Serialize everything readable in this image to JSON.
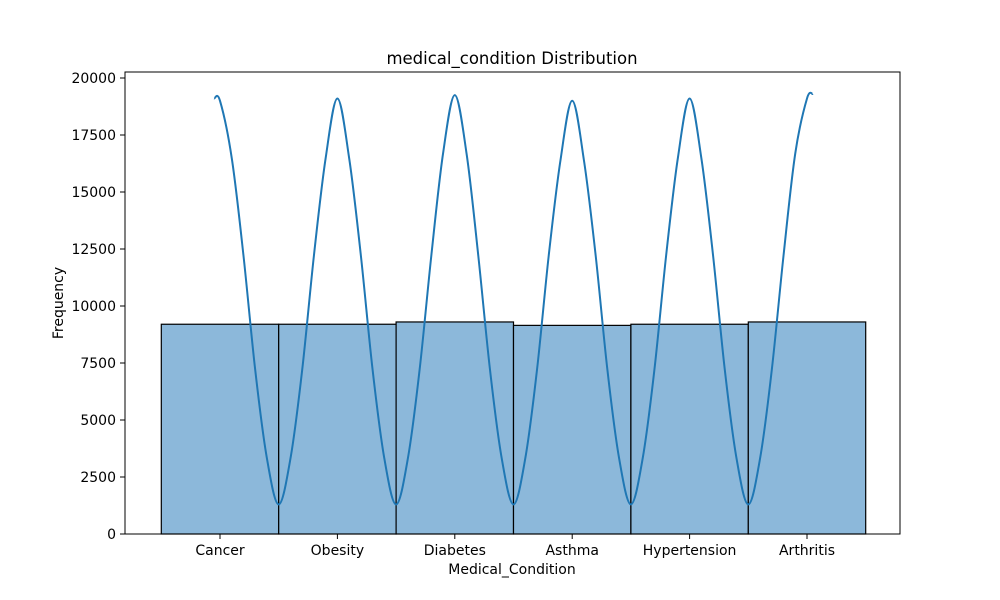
{
  "chart_data": {
    "type": "bar",
    "title": "medical_condition Distribution",
    "xlabel": "Medical_Condition",
    "ylabel": "Frequency",
    "categories": [
      "Cancer",
      "Obesity",
      "Diabetes",
      "Asthma",
      "Hypertension",
      "Arthritis"
    ],
    "values": [
      9200,
      9200,
      9300,
      9150,
      9200,
      9300
    ],
    "ylim": [
      0,
      20000
    ],
    "yticks": [
      "0",
      "2500",
      "5000",
      "7500",
      "10000",
      "12500",
      "15000",
      "17500",
      "20000"
    ],
    "grid": false,
    "legend": "none",
    "kde": {
      "x": [
        -0.05,
        0.0,
        0.1,
        0.2,
        0.3,
        0.4,
        0.5,
        0.6,
        0.7,
        0.8,
        0.9,
        1.0,
        1.1,
        1.2,
        1.3,
        1.4,
        1.5,
        1.6,
        1.7,
        1.8,
        1.9,
        2.0,
        2.1,
        2.2,
        2.3,
        2.4,
        2.5,
        2.6,
        2.7,
        2.8,
        2.9,
        3.0,
        3.1,
        3.2,
        3.3,
        3.4,
        3.5,
        3.6,
        3.7,
        3.8,
        3.9,
        4.0,
        4.1,
        4.2,
        4.3,
        4.4,
        4.5,
        4.6,
        4.7,
        4.8,
        4.9,
        5.0,
        5.05
      ],
      "y": [
        19100,
        19000,
        16500,
        12200,
        7200,
        3300,
        1300,
        3300,
        7200,
        12200,
        16500,
        19100,
        16500,
        12200,
        7200,
        3300,
        1300,
        3300,
        7200,
        12200,
        16700,
        19250,
        16700,
        12200,
        7200,
        3300,
        1300,
        3300,
        7200,
        12200,
        16400,
        19000,
        16400,
        12200,
        7200,
        3300,
        1300,
        3300,
        7200,
        12200,
        16500,
        19100,
        16500,
        12200,
        7200,
        3300,
        1300,
        3300,
        7200,
        12200,
        16700,
        19100,
        19300
      ]
    }
  },
  "colors": {
    "bar_fill": "#8cb8da",
    "bar_edge": "#000000",
    "kde_line": "#1f77b4"
  }
}
